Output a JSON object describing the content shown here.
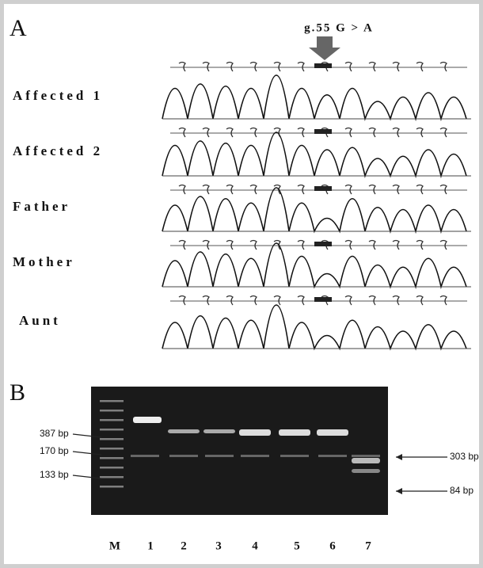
{
  "panel_a": {
    "label": "A",
    "mutation": "g.55 G > A",
    "samples": [
      "Affected 1",
      "Affected 2",
      "Father",
      "Mother",
      "Aunt"
    ]
  },
  "panel_b": {
    "label": "B",
    "left_markers": [
      "387 bp",
      "170 bp",
      "133 bp"
    ],
    "right_markers": [
      "303 bp",
      "84 bp"
    ],
    "lanes": [
      "M",
      "1",
      "2",
      "3",
      "4",
      "5",
      "6",
      "7"
    ]
  }
}
